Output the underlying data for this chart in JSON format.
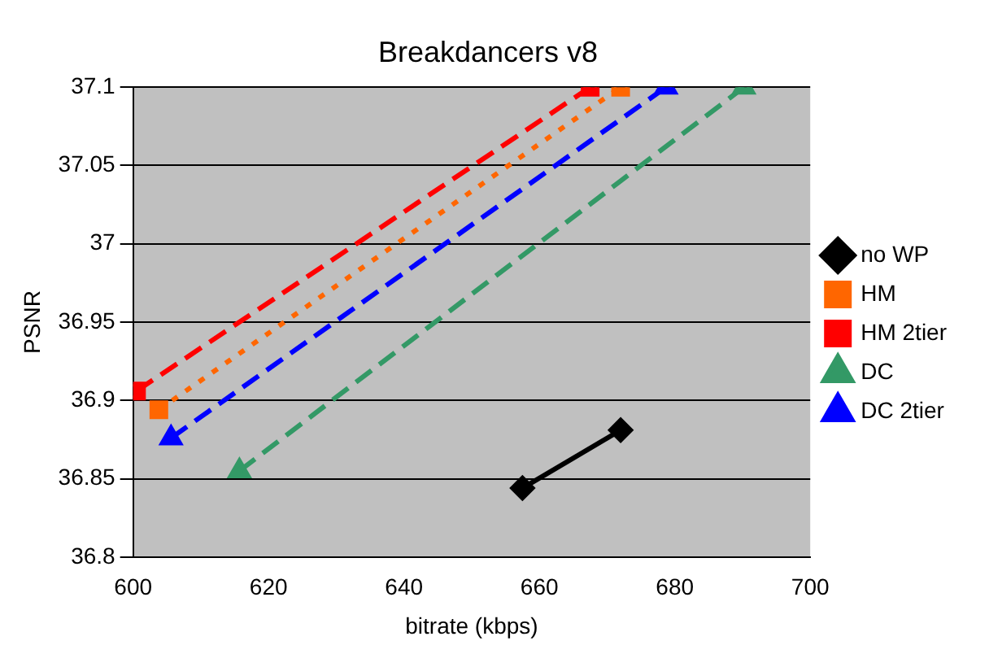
{
  "chart_data": {
    "type": "line",
    "title": "Breakdancers v8",
    "xlabel": "bitrate (kbps)",
    "ylabel": "PSNR",
    "xlim": [
      600,
      700
    ],
    "xticks": [
      600,
      620,
      640,
      660,
      680,
      700
    ],
    "ylim": [
      36.8,
      37.1
    ],
    "yticks": [
      36.8,
      36.85,
      36.9,
      36.95,
      37,
      37.05,
      37.1
    ],
    "grid": "y",
    "legend": "right",
    "series": [
      {
        "name": "no WP",
        "color": "#000000",
        "marker": "diamond",
        "line_style": "solid",
        "x": [
          657.5,
          672
        ],
        "values": [
          36.844,
          36.881
        ]
      },
      {
        "name": "HM",
        "color": "#ff6600",
        "marker": "square",
        "line_style": "dotted",
        "x": [
          603.8,
          672
        ],
        "values": [
          36.894,
          37.1
        ]
      },
      {
        "name": "HM 2tier",
        "color": "#ff0000",
        "marker": "square",
        "line_style": "dashed",
        "x": [
          600.5,
          667.5
        ],
        "values": [
          36.906,
          37.1
        ]
      },
      {
        "name": "DC",
        "color": "#339966",
        "marker": "triangle",
        "line_style": "dashed",
        "x": [
          615.7,
          690.2
        ],
        "values": [
          36.855,
          37.1
        ]
      },
      {
        "name": "DC 2tier",
        "color": "#0000ff",
        "marker": "triangle",
        "line_style": "dashed",
        "x": [
          605.6,
          678.7
        ],
        "values": [
          36.876,
          37.1
        ]
      }
    ]
  }
}
